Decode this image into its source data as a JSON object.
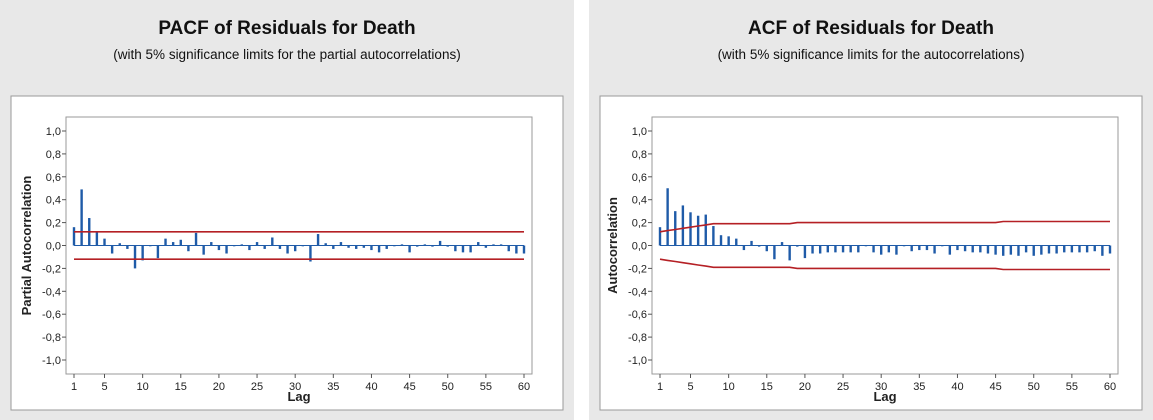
{
  "colors": {
    "panel_bg": "#e8e8e8",
    "bar": "#1f5ba8",
    "limit": "#b52025"
  },
  "chart_data": [
    {
      "type": "bar",
      "title": "PACF of Residuals for Death",
      "subtitle": "(with 5% significance limits for the partial autocorrelations)",
      "xlabel": "Lag",
      "ylabel": "Partial Autocorrelation",
      "xlim": [
        1,
        60
      ],
      "ylim": [
        -1.0,
        1.0
      ],
      "xticks": [
        1,
        5,
        10,
        15,
        20,
        25,
        30,
        35,
        40,
        45,
        50,
        55,
        60
      ],
      "xtick_labels": [
        "1",
        "5",
        "10",
        "15",
        "20",
        "25",
        "30",
        "35",
        "40",
        "45",
        "50",
        "55",
        "60"
      ],
      "yticks": [
        1.0,
        0.8,
        0.6,
        0.4,
        0.2,
        0.0,
        -0.2,
        -0.4,
        -0.6,
        -0.8,
        -1.0
      ],
      "ytick_labels": [
        "1,0",
        "0,8",
        "0,6",
        "0,4",
        "0,2",
        "0,0",
        "-0,2",
        "-0,4",
        "-0,6",
        "-0,8",
        "-1,0"
      ],
      "grid": false,
      "lags": [
        1,
        2,
        3,
        4,
        5,
        6,
        7,
        8,
        9,
        10,
        11,
        12,
        13,
        14,
        15,
        16,
        17,
        18,
        19,
        20,
        21,
        22,
        23,
        24,
        25,
        26,
        27,
        28,
        29,
        30,
        31,
        32,
        33,
        34,
        35,
        36,
        37,
        38,
        39,
        40,
        41,
        42,
        43,
        44,
        45,
        46,
        47,
        48,
        49,
        50,
        51,
        52,
        53,
        54,
        55,
        56,
        57,
        58,
        59,
        60
      ],
      "values": [
        0.16,
        0.49,
        0.24,
        0.12,
        0.06,
        -0.07,
        0.02,
        -0.03,
        -0.2,
        -0.13,
        0.0,
        -0.11,
        0.06,
        0.03,
        0.05,
        -0.05,
        0.11,
        -0.08,
        0.03,
        -0.04,
        -0.07,
        0.0,
        0.01,
        -0.04,
        0.03,
        -0.03,
        0.07,
        -0.03,
        -0.07,
        -0.05,
        0.0,
        -0.14,
        0.1,
        0.02,
        -0.03,
        0.03,
        -0.02,
        -0.03,
        -0.02,
        -0.04,
        -0.06,
        -0.03,
        0.0,
        0.01,
        -0.06,
        -0.01,
        0.01,
        -0.01,
        0.04,
        -0.01,
        -0.05,
        -0.06,
        -0.06,
        0.03,
        -0.02,
        0.01,
        0.01,
        -0.05,
        -0.07,
        -0.07
      ],
      "upper_limit": [
        0.12,
        0.12,
        0.12,
        0.12,
        0.12,
        0.12,
        0.12,
        0.12,
        0.12,
        0.12,
        0.12,
        0.12,
        0.12,
        0.12,
        0.12,
        0.12,
        0.12,
        0.12,
        0.12,
        0.12,
        0.12,
        0.12,
        0.12,
        0.12,
        0.12,
        0.12,
        0.12,
        0.12,
        0.12,
        0.12,
        0.12,
        0.12,
        0.12,
        0.12,
        0.12,
        0.12,
        0.12,
        0.12,
        0.12,
        0.12,
        0.12,
        0.12,
        0.12,
        0.12,
        0.12,
        0.12,
        0.12,
        0.12,
        0.12,
        0.12,
        0.12,
        0.12,
        0.12,
        0.12,
        0.12,
        0.12,
        0.12,
        0.12,
        0.12,
        0.12
      ],
      "lower_limit": [
        -0.12,
        -0.12,
        -0.12,
        -0.12,
        -0.12,
        -0.12,
        -0.12,
        -0.12,
        -0.12,
        -0.12,
        -0.12,
        -0.12,
        -0.12,
        -0.12,
        -0.12,
        -0.12,
        -0.12,
        -0.12,
        -0.12,
        -0.12,
        -0.12,
        -0.12,
        -0.12,
        -0.12,
        -0.12,
        -0.12,
        -0.12,
        -0.12,
        -0.12,
        -0.12,
        -0.12,
        -0.12,
        -0.12,
        -0.12,
        -0.12,
        -0.12,
        -0.12,
        -0.12,
        -0.12,
        -0.12,
        -0.12,
        -0.12,
        -0.12,
        -0.12,
        -0.12,
        -0.12,
        -0.12,
        -0.12,
        -0.12,
        -0.12,
        -0.12,
        -0.12,
        -0.12,
        -0.12,
        -0.12,
        -0.12,
        -0.12,
        -0.12,
        -0.12,
        -0.12
      ]
    },
    {
      "type": "bar",
      "title": "ACF of Residuals for Death",
      "subtitle": "(with 5% significance limits for the autocorrelations)",
      "xlabel": "Lag",
      "ylabel": "Autocorrelation",
      "xlim": [
        1,
        60
      ],
      "ylim": [
        -1.0,
        1.0
      ],
      "xticks": [
        1,
        5,
        10,
        15,
        20,
        25,
        30,
        35,
        40,
        45,
        50,
        55,
        60
      ],
      "xtick_labels": [
        "1",
        "5",
        "10",
        "15",
        "20",
        "25",
        "30",
        "35",
        "40",
        "45",
        "50",
        "55",
        "60"
      ],
      "yticks": [
        1.0,
        0.8,
        0.6,
        0.4,
        0.2,
        0.0,
        -0.2,
        -0.4,
        -0.6,
        -0.8,
        -1.0
      ],
      "ytick_labels": [
        "1,0",
        "0,8",
        "0,6",
        "0,4",
        "0,2",
        "0,0",
        "-0,2",
        "-0,4",
        "-0,6",
        "-0,8",
        "-1,0"
      ],
      "grid": false,
      "lags": [
        1,
        2,
        3,
        4,
        5,
        6,
        7,
        8,
        9,
        10,
        11,
        12,
        13,
        14,
        15,
        16,
        17,
        18,
        19,
        20,
        21,
        22,
        23,
        24,
        25,
        26,
        27,
        28,
        29,
        30,
        31,
        32,
        33,
        34,
        35,
        36,
        37,
        38,
        39,
        40,
        41,
        42,
        43,
        44,
        45,
        46,
        47,
        48,
        49,
        50,
        51,
        52,
        53,
        54,
        55,
        56,
        57,
        58,
        59,
        60
      ],
      "values": [
        0.16,
        0.5,
        0.3,
        0.35,
        0.29,
        0.26,
        0.27,
        0.17,
        0.09,
        0.08,
        0.06,
        -0.04,
        0.04,
        -0.01,
        -0.05,
        -0.12,
        0.03,
        -0.13,
        -0.01,
        -0.11,
        -0.07,
        -0.07,
        -0.06,
        -0.06,
        -0.06,
        -0.06,
        -0.06,
        0.0,
        -0.06,
        -0.08,
        -0.06,
        -0.08,
        0.0,
        -0.05,
        -0.04,
        -0.04,
        -0.07,
        0.0,
        -0.08,
        -0.04,
        -0.05,
        -0.06,
        -0.06,
        -0.07,
        -0.08,
        -0.09,
        -0.08,
        -0.09,
        -0.06,
        -0.09,
        -0.08,
        -0.07,
        -0.07,
        -0.06,
        -0.06,
        -0.06,
        -0.06,
        -0.05,
        -0.09,
        -0.07
      ],
      "upper_limit": [
        0.12,
        0.13,
        0.14,
        0.15,
        0.16,
        0.17,
        0.18,
        0.19,
        0.19,
        0.19,
        0.19,
        0.19,
        0.19,
        0.19,
        0.19,
        0.19,
        0.19,
        0.19,
        0.2,
        0.2,
        0.2,
        0.2,
        0.2,
        0.2,
        0.2,
        0.2,
        0.2,
        0.2,
        0.2,
        0.2,
        0.2,
        0.2,
        0.2,
        0.2,
        0.2,
        0.2,
        0.2,
        0.2,
        0.2,
        0.2,
        0.2,
        0.2,
        0.2,
        0.2,
        0.2,
        0.21,
        0.21,
        0.21,
        0.21,
        0.21,
        0.21,
        0.21,
        0.21,
        0.21,
        0.21,
        0.21,
        0.21,
        0.21,
        0.21,
        0.21
      ],
      "lower_limit": [
        -0.12,
        -0.13,
        -0.14,
        -0.15,
        -0.16,
        -0.17,
        -0.18,
        -0.19,
        -0.19,
        -0.19,
        -0.19,
        -0.19,
        -0.19,
        -0.19,
        -0.19,
        -0.19,
        -0.19,
        -0.19,
        -0.2,
        -0.2,
        -0.2,
        -0.2,
        -0.2,
        -0.2,
        -0.2,
        -0.2,
        -0.2,
        -0.2,
        -0.2,
        -0.2,
        -0.2,
        -0.2,
        -0.2,
        -0.2,
        -0.2,
        -0.2,
        -0.2,
        -0.2,
        -0.2,
        -0.2,
        -0.2,
        -0.2,
        -0.2,
        -0.2,
        -0.2,
        -0.21,
        -0.21,
        -0.21,
        -0.21,
        -0.21,
        -0.21,
        -0.21,
        -0.21,
        -0.21,
        -0.21,
        -0.21,
        -0.21,
        -0.21,
        -0.21,
        -0.21
      ]
    }
  ]
}
